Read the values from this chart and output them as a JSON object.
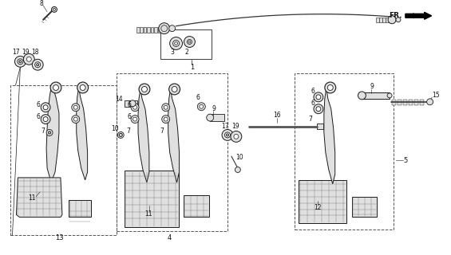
{
  "bg": "#f5f5f5",
  "lc": "#1a1a1a",
  "fig_w": 5.65,
  "fig_h": 3.2,
  "dpi": 100,
  "gray_fill": "#c8c8c8",
  "light_gray": "#e0e0e0",
  "dark_gray": "#555555",
  "box_dash": "#444444",
  "cable_color": "#333333"
}
